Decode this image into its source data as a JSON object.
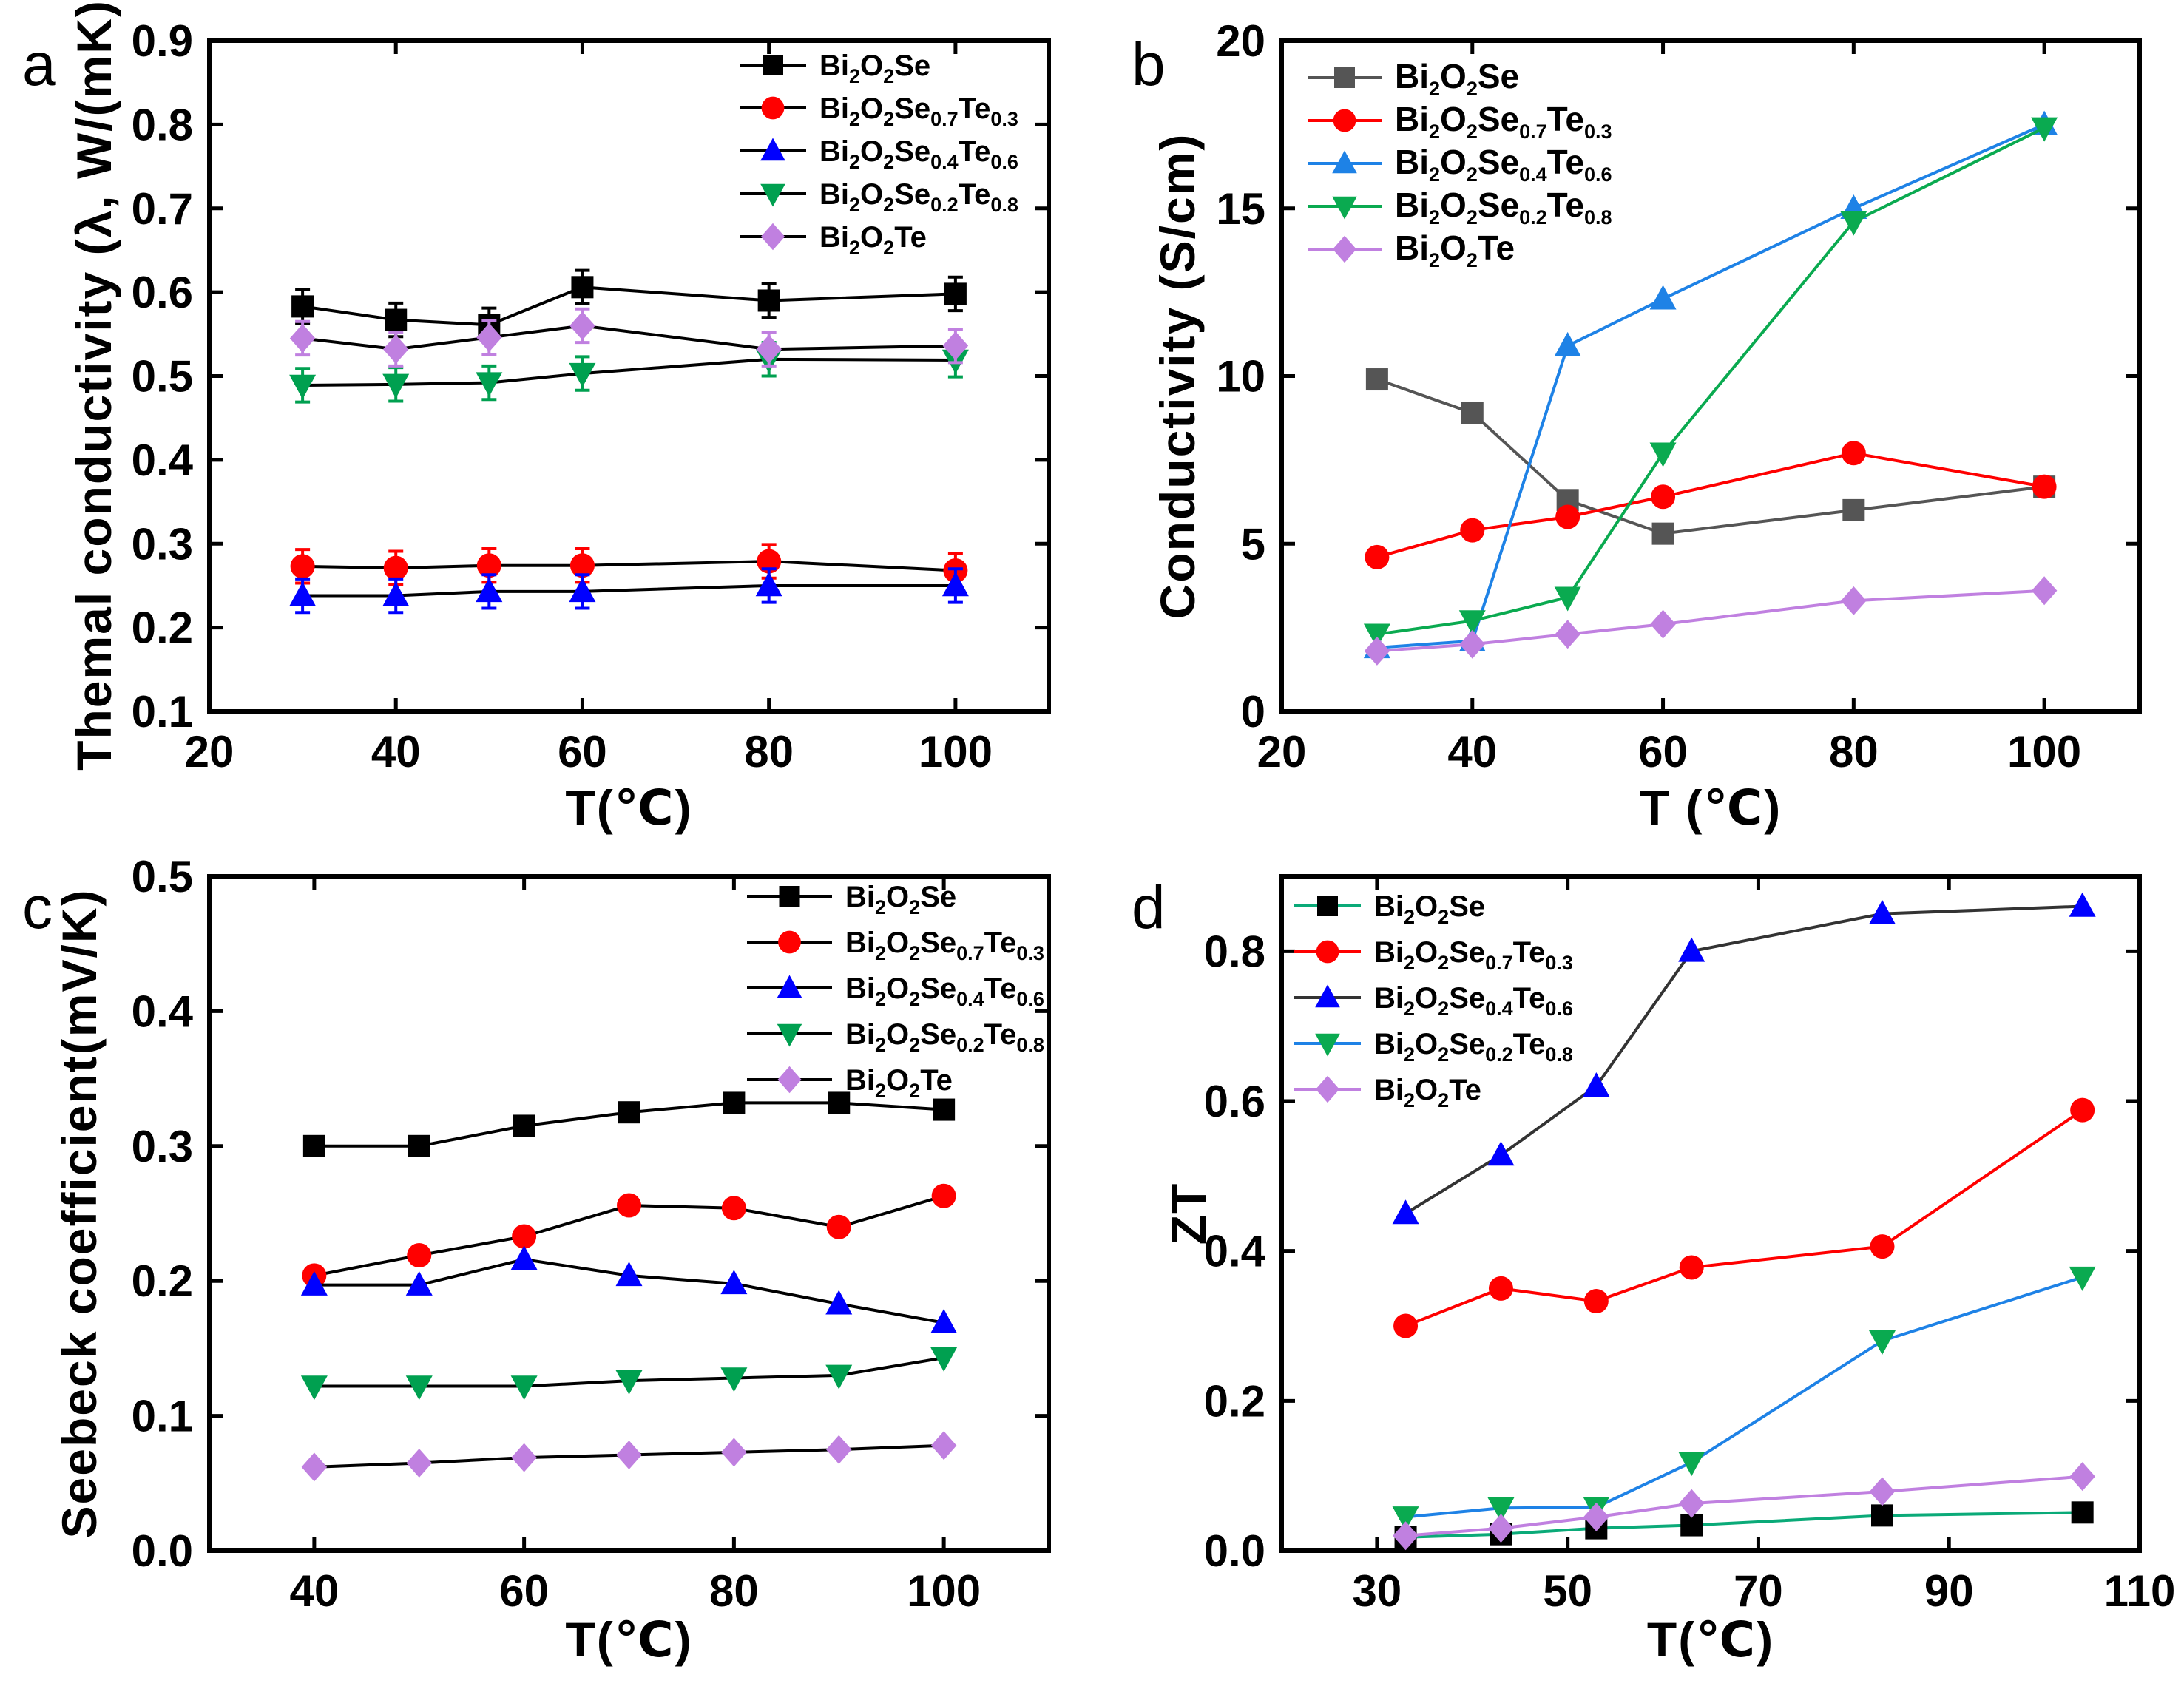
{
  "chart_data": [
    {
      "panel": "a",
      "type": "line",
      "xlabel": "T(℃)",
      "ylabel": "Themal conductivity (λ, W/(mK))",
      "xlim": [
        20,
        110
      ],
      "ylim": [
        0.1,
        0.9
      ],
      "xticks": [
        "20",
        "40",
        "60",
        "80",
        "100"
      ],
      "yticks": [
        "0.1",
        "0.2",
        "0.3",
        "0.4",
        "0.5",
        "0.6",
        "0.7",
        "0.8",
        "0.9"
      ],
      "legend_position": "top-right",
      "x": [
        30,
        40,
        50,
        60,
        80,
        100
      ],
      "series": [
        {
          "name": "Bi2O2Se",
          "legend": [
            "Bi",
            "2",
            "O",
            "2",
            "Se"
          ],
          "color": "#000000",
          "line_color": "#000000",
          "marker": "square",
          "values": [
            0.583,
            0.567,
            0.561,
            0.606,
            0.59,
            0.598
          ],
          "errors": [
            0.02,
            0.02,
            0.02,
            0.02,
            0.02,
            0.02
          ]
        },
        {
          "name": "Bi2O2Se0.7Te0.3",
          "legend": [
            "Bi",
            "2",
            "O",
            "2",
            "Se",
            "0.7",
            "Te",
            "0.3"
          ],
          "color": "#ff0000",
          "line_color": "#000000",
          "marker": "circle",
          "values": [
            0.273,
            0.271,
            0.274,
            0.274,
            0.279,
            0.268
          ],
          "errors": [
            0.02,
            0.02,
            0.02,
            0.02,
            0.02,
            0.02
          ]
        },
        {
          "name": "Bi2O2Se0.4Te0.6",
          "legend": [
            "Bi",
            "2",
            "O",
            "2",
            "Se",
            "0.4",
            "Te",
            "0.6"
          ],
          "color": "#0000ff",
          "line_color": "#000000",
          "marker": "triangle",
          "values": [
            0.238,
            0.238,
            0.243,
            0.243,
            0.25,
            0.25
          ],
          "errors": [
            0.02,
            0.02,
            0.02,
            0.02,
            0.02,
            0.02
          ]
        },
        {
          "name": "Bi2O2Se0.2Te0.8",
          "legend": [
            "Bi",
            "2",
            "O",
            "2",
            "Se",
            "0.2",
            "Te",
            "0.8"
          ],
          "color": "#00a050",
          "line_color": "#000000",
          "marker": "triangle-down",
          "values": [
            0.489,
            0.49,
            0.492,
            0.503,
            0.52,
            0.519
          ],
          "errors": [
            0.02,
            0.02,
            0.02,
            0.02,
            0.02,
            0.02
          ]
        },
        {
          "name": "Bi2O2Te",
          "legend": [
            "Bi",
            "2",
            "O",
            "2",
            "Te"
          ],
          "color": "#c080e0",
          "line_color": "#000000",
          "marker": "diamond",
          "values": [
            0.545,
            0.532,
            0.546,
            0.56,
            0.532,
            0.536
          ],
          "errors": [
            0.02,
            0.02,
            0.02,
            0.02,
            0.02,
            0.02
          ]
        }
      ]
    },
    {
      "panel": "b",
      "type": "line",
      "xlabel": "T (℃)",
      "ylabel": "Conductivity (S/cm)",
      "xlim": [
        20,
        110
      ],
      "ylim": [
        0,
        20
      ],
      "xticks": [
        "20",
        "40",
        "60",
        "80",
        "100"
      ],
      "yticks": [
        "0",
        "5",
        "10",
        "15",
        "20"
      ],
      "legend_position": "top-left",
      "x": [
        30,
        40,
        50,
        60,
        80,
        100
      ],
      "series": [
        {
          "name": "Bi2O2Se",
          "legend": [
            "Bi",
            "2",
            "O",
            "2",
            "Se"
          ],
          "color": "#555555",
          "line_color": "#555555",
          "marker": "square",
          "values": [
            9.9,
            8.9,
            6.3,
            5.3,
            6.0,
            6.7
          ]
        },
        {
          "name": "Bi2O2Se0.7Te0.3",
          "legend": [
            "Bi",
            "2",
            "O",
            "2",
            "Se",
            "0.7",
            "Te",
            "0.3"
          ],
          "color": "#ff0000",
          "line_color": "#ff0000",
          "marker": "circle",
          "values": [
            4.6,
            5.4,
            5.8,
            6.4,
            7.7,
            6.7
          ]
        },
        {
          "name": "Bi2O2Se0.4Te0.6",
          "legend": [
            "Bi",
            "2",
            "O",
            "2",
            "Se",
            "0.4",
            "Te",
            "0.6"
          ],
          "color": "#1e82e6",
          "line_color": "#1e82e6",
          "marker": "triangle",
          "values": [
            1.9,
            2.1,
            10.9,
            12.3,
            15.0,
            17.5
          ]
        },
        {
          "name": "Bi2O2Se0.2Te0.8",
          "legend": [
            "Bi",
            "2",
            "O",
            "2",
            "Se",
            "0.2",
            "Te",
            "0.8"
          ],
          "color": "#0aaa50",
          "line_color": "#0aaa50",
          "marker": "triangle-down",
          "values": [
            2.3,
            2.7,
            3.4,
            7.7,
            14.6,
            17.4
          ]
        },
        {
          "name": "Bi2O2Te",
          "legend": [
            "Bi",
            "2",
            "O",
            "2",
            "Te"
          ],
          "color": "#c080e0",
          "line_color": "#c080e0",
          "marker": "diamond",
          "values": [
            1.8,
            2.0,
            2.3,
            2.6,
            3.3,
            3.6
          ]
        }
      ]
    },
    {
      "panel": "c",
      "type": "line",
      "xlabel": "T(℃)",
      "ylabel": "Seebeck coefficient(mV/K)",
      "xlim": [
        30,
        110
      ],
      "ylim": [
        0.0,
        0.5
      ],
      "xticks": [
        "40",
        "60",
        "80",
        "100"
      ],
      "yticks": [
        "0.0",
        "0.1",
        "0.2",
        "0.3",
        "0.4",
        "0.5"
      ],
      "legend_position": "top-right",
      "x": [
        40,
        50,
        60,
        70,
        80,
        90,
        100
      ],
      "series": [
        {
          "name": "Bi2O2Se",
          "legend": [
            "Bi",
            "2",
            "O",
            "2",
            "Se"
          ],
          "color": "#000000",
          "line_color": "#000000",
          "marker": "square",
          "values": [
            0.3,
            0.3,
            0.315,
            0.325,
            0.332,
            0.332,
            0.327
          ]
        },
        {
          "name": "Bi2O2Se0.7Te0.3",
          "legend": [
            "Bi",
            "2",
            "O",
            "2",
            "Se",
            "0.7",
            "Te",
            "0.3"
          ],
          "color": "#ff0000",
          "line_color": "#000000",
          "marker": "circle",
          "values": [
            0.204,
            0.219,
            0.233,
            0.256,
            0.254,
            0.24,
            0.263
          ]
        },
        {
          "name": "Bi2O2Se0.4Te0.6",
          "legend": [
            "Bi",
            "2",
            "O",
            "2",
            "Se",
            "0.4",
            "Te",
            "0.6"
          ],
          "color": "#0000ff",
          "line_color": "#000000",
          "marker": "triangle",
          "values": [
            0.197,
            0.197,
            0.216,
            0.204,
            0.198,
            0.183,
            0.169
          ]
        },
        {
          "name": "Bi2O2Se0.2Te0.8",
          "legend": [
            "Bi",
            "2",
            "O",
            "2",
            "Se",
            "0.2",
            "Te",
            "0.8"
          ],
          "color": "#00a050",
          "line_color": "#000000",
          "marker": "triangle-down",
          "values": [
            0.122,
            0.122,
            0.122,
            0.126,
            0.128,
            0.13,
            0.143
          ]
        },
        {
          "name": "Bi2O2Te",
          "legend": [
            "Bi",
            "2",
            "O",
            "2",
            "Te"
          ],
          "color": "#c080e0",
          "line_color": "#000000",
          "marker": "diamond",
          "values": [
            0.062,
            0.065,
            0.069,
            0.071,
            0.073,
            0.075,
            0.078
          ]
        }
      ]
    },
    {
      "panel": "d",
      "type": "line",
      "xlabel": "T(℃)",
      "ylabel": "ZT",
      "xlim": [
        20,
        110
      ],
      "ylim": [
        0.0,
        0.9
      ],
      "xticks": [
        "30",
        "50",
        "70",
        "90",
        "110"
      ],
      "yticks": [
        "0.0",
        "0.2",
        "0.4",
        "0.6",
        "0.8"
      ],
      "legend_position": "top-left",
      "x": [
        33,
        43,
        53,
        63,
        83,
        104
      ],
      "series": [
        {
          "name": "Bi2O2Se",
          "legend": [
            "Bi",
            "2",
            "O",
            "2",
            "Se"
          ],
          "color": "#000000",
          "line_color": "#0aaa78",
          "marker": "square",
          "values": [
            0.018,
            0.022,
            0.03,
            0.034,
            0.047,
            0.051
          ]
        },
        {
          "name": "Bi2O2Se0.7Te0.3",
          "legend": [
            "Bi",
            "2",
            "O",
            "2",
            "Se",
            "0.7",
            "Te",
            "0.3"
          ],
          "color": "#ff0000",
          "line_color": "#ff0000",
          "marker": "circle",
          "values": [
            0.3,
            0.35,
            0.333,
            0.378,
            0.406,
            0.588
          ]
        },
        {
          "name": "Bi2O2Se0.4Te0.6",
          "legend": [
            "Bi",
            "2",
            "O",
            "2",
            "Se",
            "0.4",
            "Te",
            "0.6"
          ],
          "color": "#0000ff",
          "line_color": "#333333",
          "marker": "triangle",
          "values": [
            0.45,
            0.528,
            0.62,
            0.8,
            0.85,
            0.86
          ]
        },
        {
          "name": "Bi2O2Se0.2Te0.8",
          "legend": [
            "Bi",
            "2",
            "O",
            "2",
            "Se",
            "0.2",
            "Te",
            "0.8"
          ],
          "color": "#0aaa50",
          "line_color": "#1e82e6",
          "marker": "triangle-down",
          "values": [
            0.045,
            0.057,
            0.058,
            0.118,
            0.28,
            0.365
          ]
        },
        {
          "name": "Bi2O2Te",
          "legend": [
            "Bi",
            "2",
            "O",
            "2",
            "Te"
          ],
          "color": "#c080e0",
          "line_color": "#c080e0",
          "marker": "diamond",
          "values": [
            0.02,
            0.03,
            0.045,
            0.063,
            0.079,
            0.099
          ]
        }
      ]
    }
  ]
}
